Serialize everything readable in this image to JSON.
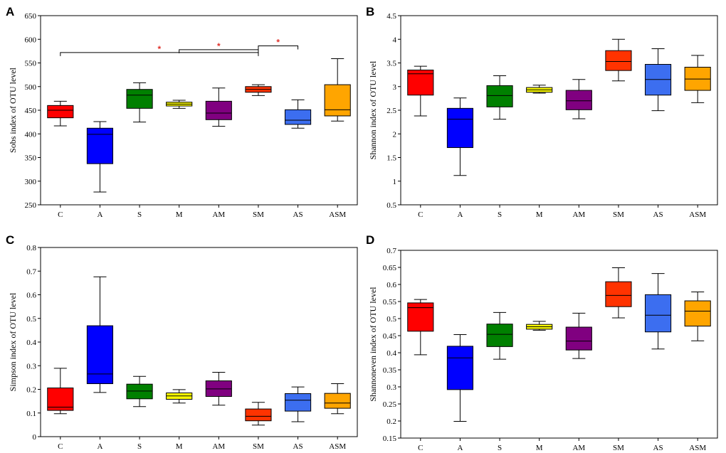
{
  "figure": {
    "panels": [
      "A",
      "B",
      "C",
      "D"
    ]
  },
  "palette": {
    "C": "#ff0000",
    "A": "#0000ff",
    "S": "#008000",
    "M": "#ffff00",
    "AM": "#800080",
    "SM": "#ff3300",
    "AS": "#3c6ef0",
    "ASM": "#ffa500"
  },
  "chart_data": [
    {
      "type": "box",
      "panel": "A",
      "ylabel": "Sobs index of OTU level",
      "categories": [
        "C",
        "A",
        "S",
        "M",
        "AM",
        "SM",
        "AS",
        "ASM"
      ],
      "ylim": [
        250,
        650
      ],
      "yticks": [
        250,
        300,
        350,
        400,
        450,
        500,
        550,
        600,
        650
      ],
      "tick_labels": [
        "250",
        "300",
        "350",
        "400",
        "450",
        "500",
        "550",
        "600",
        "650"
      ],
      "boxes": [
        {
          "min": 417,
          "q1": 434,
          "median": 450,
          "q3": 460,
          "max": 469
        },
        {
          "min": 277,
          "q1": 337,
          "median": 399,
          "q3": 412,
          "max": 426
        },
        {
          "min": 425,
          "q1": 454,
          "median": 482,
          "q3": 494,
          "max": 508
        },
        {
          "min": 454,
          "q1": 459,
          "median": 463,
          "q3": 467,
          "max": 471
        },
        {
          "min": 416,
          "q1": 430,
          "median": 444,
          "q3": 469,
          "max": 497
        },
        {
          "min": 481,
          "q1": 488,
          "median": 494,
          "q3": 500,
          "max": 504
        },
        {
          "min": 412,
          "q1": 420,
          "median": 429,
          "q3": 451,
          "max": 472
        },
        {
          "min": 427,
          "q1": 438,
          "median": 451,
          "q3": 504,
          "max": 559
        }
      ],
      "significance": [
        {
          "from": "C",
          "to": "SM",
          "y": 572,
          "label": "*"
        },
        {
          "from": "M",
          "to": "SM",
          "y": 578,
          "label": "*"
        },
        {
          "from": "SM",
          "to": "AS",
          "y": 586,
          "label": "*"
        }
      ]
    },
    {
      "type": "box",
      "panel": "B",
      "ylabel": "Shannon index of OTU level",
      "categories": [
        "C",
        "A",
        "S",
        "M",
        "AM",
        "SM",
        "AS",
        "ASM"
      ],
      "ylim": [
        0.5,
        4.5
      ],
      "yticks": [
        0.5,
        1,
        1.5,
        2,
        2.5,
        3,
        3.5,
        4,
        4.5
      ],
      "tick_labels": [
        "0.5",
        "1",
        "1.5",
        "2",
        "2.5",
        "3",
        "3.5",
        "4",
        "4.5"
      ],
      "boxes": [
        {
          "min": 2.38,
          "q1": 2.82,
          "median": 3.27,
          "q3": 3.35,
          "max": 3.43
        },
        {
          "min": 1.12,
          "q1": 1.71,
          "median": 2.31,
          "q3": 2.54,
          "max": 2.76
        },
        {
          "min": 2.31,
          "q1": 2.57,
          "median": 2.81,
          "q3": 3.02,
          "max": 3.23
        },
        {
          "min": 2.86,
          "q1": 2.88,
          "median": 2.93,
          "q3": 2.98,
          "max": 3.03
        },
        {
          "min": 2.32,
          "q1": 2.51,
          "median": 2.7,
          "q3": 2.92,
          "max": 3.15
        },
        {
          "min": 3.12,
          "q1": 3.34,
          "median": 3.53,
          "q3": 3.76,
          "max": 4.0
        },
        {
          "min": 2.49,
          "q1": 2.82,
          "median": 3.15,
          "q3": 3.47,
          "max": 3.8
        },
        {
          "min": 2.66,
          "q1": 2.92,
          "median": 3.16,
          "q3": 3.41,
          "max": 3.66
        }
      ]
    },
    {
      "type": "box",
      "panel": "C",
      "ylabel": "Simpson index of OTU level",
      "categories": [
        "C",
        "A",
        "S",
        "M",
        "AM",
        "SM",
        "AS",
        "ASM"
      ],
      "ylim": [
        0,
        0.8
      ],
      "yticks": [
        0,
        0.1,
        0.2,
        0.3,
        0.4,
        0.5,
        0.6,
        0.7,
        0.8
      ],
      "tick_labels": [
        "0",
        "0.1",
        "0.2",
        "0.3",
        "0.4",
        "0.5",
        "0.6",
        "0.7",
        "0.8"
      ],
      "boxes": [
        {
          "min": 0.097,
          "q1": 0.111,
          "median": 0.125,
          "q3": 0.206,
          "max": 0.289
        },
        {
          "min": 0.187,
          "q1": 0.224,
          "median": 0.265,
          "q3": 0.469,
          "max": 0.676
        },
        {
          "min": 0.127,
          "q1": 0.16,
          "median": 0.193,
          "q3": 0.222,
          "max": 0.255
        },
        {
          "min": 0.142,
          "q1": 0.158,
          "median": 0.172,
          "q3": 0.185,
          "max": 0.199
        },
        {
          "min": 0.133,
          "q1": 0.17,
          "median": 0.202,
          "q3": 0.236,
          "max": 0.272
        },
        {
          "min": 0.049,
          "q1": 0.067,
          "median": 0.086,
          "q3": 0.117,
          "max": 0.145
        },
        {
          "min": 0.063,
          "q1": 0.108,
          "median": 0.154,
          "q3": 0.182,
          "max": 0.21
        },
        {
          "min": 0.097,
          "q1": 0.12,
          "median": 0.142,
          "q3": 0.183,
          "max": 0.224
        }
      ]
    },
    {
      "type": "box",
      "panel": "D",
      "ylabel": "Shannoneven index of OTU level",
      "categories": [
        "C",
        "A",
        "S",
        "M",
        "AM",
        "SM",
        "AS",
        "ASM"
      ],
      "ylim": [
        0.15,
        0.7
      ],
      "yticks": [
        0.15,
        0.2,
        0.25,
        0.3,
        0.35,
        0.4,
        0.45,
        0.5,
        0.55,
        0.6,
        0.65,
        0.7
      ],
      "tick_labels": [
        "0.15",
        "0.2",
        "0.25",
        "0.3",
        "0.35",
        "0.4",
        "0.45",
        "0.5",
        "0.55",
        "0.6",
        "0.65",
        "0.7"
      ],
      "boxes": [
        {
          "min": 0.394,
          "q1": 0.463,
          "median": 0.532,
          "q3": 0.546,
          "max": 0.556
        },
        {
          "min": 0.199,
          "q1": 0.292,
          "median": 0.385,
          "q3": 0.419,
          "max": 0.453
        },
        {
          "min": 0.381,
          "q1": 0.418,
          "median": 0.454,
          "q3": 0.484,
          "max": 0.518
        },
        {
          "min": 0.466,
          "q1": 0.469,
          "median": 0.476,
          "q3": 0.483,
          "max": 0.492
        },
        {
          "min": 0.383,
          "q1": 0.408,
          "median": 0.434,
          "q3": 0.475,
          "max": 0.516
        },
        {
          "min": 0.502,
          "q1": 0.535,
          "median": 0.568,
          "q3": 0.608,
          "max": 0.649
        },
        {
          "min": 0.411,
          "q1": 0.461,
          "median": 0.51,
          "q3": 0.57,
          "max": 0.632
        },
        {
          "min": 0.435,
          "q1": 0.478,
          "median": 0.522,
          "q3": 0.552,
          "max": 0.578
        }
      ]
    }
  ]
}
